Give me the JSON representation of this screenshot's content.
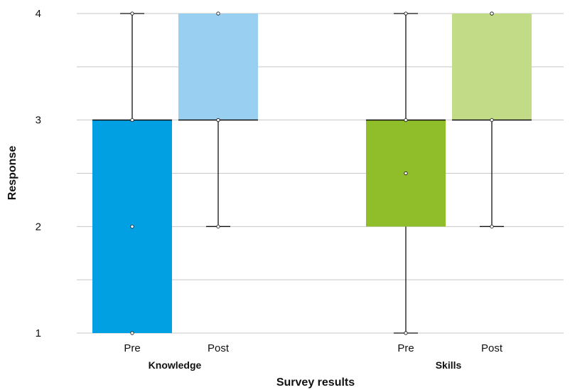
{
  "chart_data": {
    "type": "boxplot",
    "title": "",
    "xlabel": "Survey results",
    "ylabel": "Response",
    "ylim": [
      1,
      4
    ],
    "yticks": [
      1,
      2,
      3,
      4
    ],
    "grid": true,
    "groups": [
      {
        "name": "Knowledge",
        "boxes": [
          {
            "label": "Pre",
            "color": "#00A0E3",
            "min": 1,
            "q1": 1,
            "median": 3,
            "q3": 3,
            "max": 4,
            "mean": 2
          },
          {
            "label": "Post",
            "color": "#99CFF0",
            "min": 2,
            "q1": 3,
            "median": 3,
            "q3": 4,
            "max": 4,
            "mean": 3
          }
        ]
      },
      {
        "name": "Skills",
        "boxes": [
          {
            "label": "Pre",
            "color": "#8FBE2A",
            "min": 1,
            "q1": 2,
            "median": 3,
            "q3": 3,
            "max": 4,
            "mean": 2.5
          },
          {
            "label": "Post",
            "color": "#C2DB87",
            "min": 2,
            "q1": 3,
            "median": 3,
            "q3": 4,
            "max": 4,
            "mean": 4
          }
        ]
      }
    ]
  }
}
